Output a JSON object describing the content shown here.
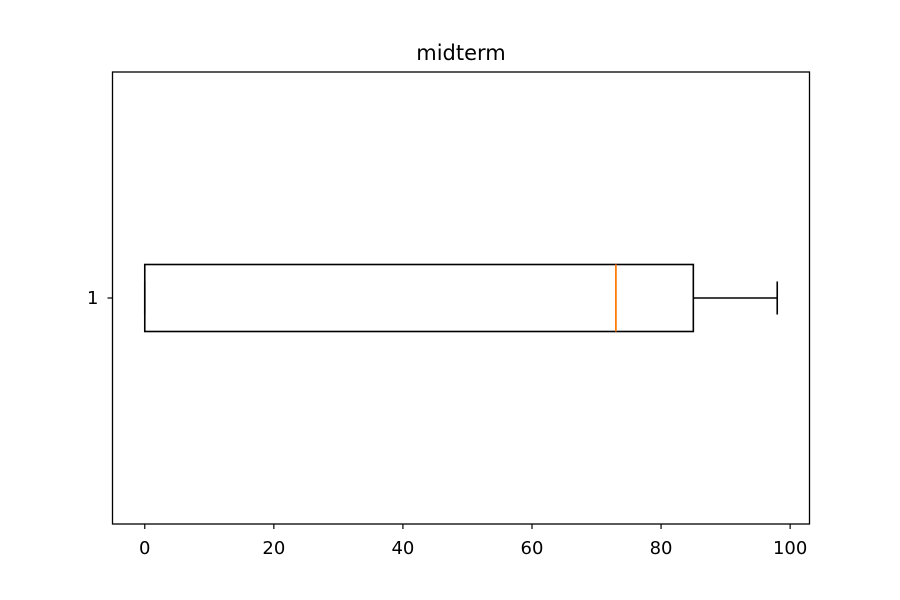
{
  "chart_data": {
    "type": "boxplot",
    "orientation": "horizontal",
    "title": "midterm",
    "xlabel": "",
    "ylabel": "",
    "xlim": [
      -5,
      103
    ],
    "x_ticks": [
      0,
      20,
      40,
      60,
      80,
      100
    ],
    "categories": [
      "1"
    ],
    "boxes": [
      {
        "category": "1",
        "whisker_low": 0,
        "q1": 0,
        "median": 73,
        "q3": 85,
        "whisker_high": 98
      }
    ],
    "grid": false,
    "legend": "none",
    "colors": {
      "box": "#000000",
      "median": "#ff7f0e",
      "axes": "#000000",
      "background": "#ffffff"
    }
  }
}
